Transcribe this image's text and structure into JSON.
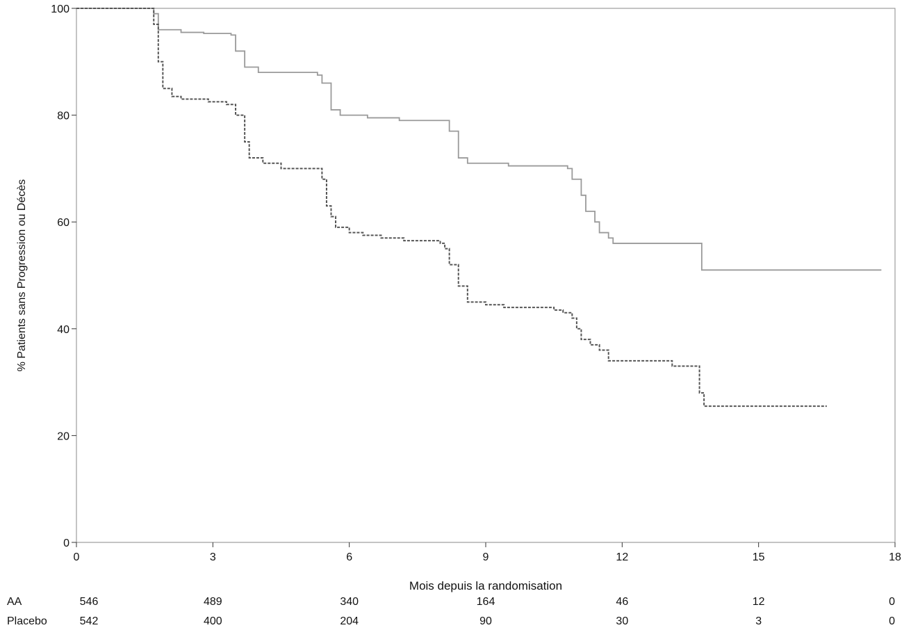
{
  "chart_data": {
    "type": "line",
    "title": "",
    "xlabel": "Mois depuis la randomisation",
    "ylabel": "% Patients sans Progression ou Décès",
    "xlim": [
      0,
      18
    ],
    "ylim": [
      0,
      100
    ],
    "x_ticks": [
      0,
      3,
      6,
      9,
      12,
      15,
      18
    ],
    "y_ticks": [
      0,
      20,
      40,
      60,
      80,
      100
    ],
    "grid": false,
    "legend": "none",
    "series": [
      {
        "name": "",
        "color": "#9a9a9a",
        "style": "step-solid",
        "points": [
          [
            0,
            100
          ],
          [
            1.6,
            100
          ],
          [
            1.7,
            99
          ],
          [
            1.8,
            96
          ],
          [
            2.3,
            95.5
          ],
          [
            2.8,
            95.3
          ],
          [
            3.4,
            95
          ],
          [
            3.5,
            92
          ],
          [
            3.7,
            89
          ],
          [
            4.0,
            88
          ],
          [
            4.6,
            88
          ],
          [
            5.3,
            87.5
          ],
          [
            5.4,
            86
          ],
          [
            5.6,
            81
          ],
          [
            5.8,
            80
          ],
          [
            6.4,
            79.5
          ],
          [
            7.1,
            79
          ],
          [
            8.1,
            79
          ],
          [
            8.2,
            77
          ],
          [
            8.4,
            72
          ],
          [
            8.6,
            71
          ],
          [
            9.4,
            71
          ],
          [
            9.5,
            70.5
          ],
          [
            10.8,
            70
          ],
          [
            10.9,
            68
          ],
          [
            11.1,
            65
          ],
          [
            11.2,
            62
          ],
          [
            11.4,
            60
          ],
          [
            11.5,
            58
          ],
          [
            11.7,
            57
          ],
          [
            11.8,
            56
          ],
          [
            13.7,
            56
          ],
          [
            13.75,
            51
          ],
          [
            17.7,
            51
          ]
        ]
      },
      {
        "name": "",
        "color": "#555555",
        "style": "step-dashed",
        "points": [
          [
            0,
            100
          ],
          [
            1.6,
            100
          ],
          [
            1.7,
            97
          ],
          [
            1.8,
            90
          ],
          [
            1.9,
            85
          ],
          [
            2.1,
            83.5
          ],
          [
            2.3,
            83
          ],
          [
            2.9,
            82.5
          ],
          [
            3.3,
            82
          ],
          [
            3.5,
            80
          ],
          [
            3.7,
            75
          ],
          [
            3.8,
            72
          ],
          [
            4.1,
            71
          ],
          [
            4.5,
            70
          ],
          [
            5.3,
            70
          ],
          [
            5.4,
            68
          ],
          [
            5.5,
            63
          ],
          [
            5.6,
            61
          ],
          [
            5.7,
            59
          ],
          [
            6.0,
            58
          ],
          [
            6.3,
            57.5
          ],
          [
            6.7,
            57
          ],
          [
            7.2,
            56.5
          ],
          [
            8.0,
            56
          ],
          [
            8.1,
            55
          ],
          [
            8.2,
            52
          ],
          [
            8.4,
            48
          ],
          [
            8.6,
            45
          ],
          [
            9.0,
            44.5
          ],
          [
            9.4,
            44
          ],
          [
            10.5,
            43.5
          ],
          [
            10.7,
            43
          ],
          [
            10.9,
            42
          ],
          [
            11.0,
            40
          ],
          [
            11.1,
            38
          ],
          [
            11.3,
            37
          ],
          [
            11.5,
            36
          ],
          [
            11.7,
            34
          ],
          [
            13.0,
            34
          ],
          [
            13.1,
            33
          ],
          [
            13.65,
            33
          ],
          [
            13.7,
            28
          ],
          [
            13.8,
            25.5
          ],
          [
            16.5,
            25.5
          ]
        ]
      }
    ],
    "risk_table": {
      "times": [
        0,
        3,
        6,
        9,
        12,
        15,
        18
      ],
      "rows": [
        {
          "label": "AA",
          "values": [
            "546",
            "489",
            "340",
            "164",
            "46",
            "12",
            "0"
          ]
        },
        {
          "label": "Placebo",
          "values": [
            "542",
            "400",
            "204",
            "90",
            "30",
            "3",
            "0"
          ]
        }
      ]
    }
  }
}
